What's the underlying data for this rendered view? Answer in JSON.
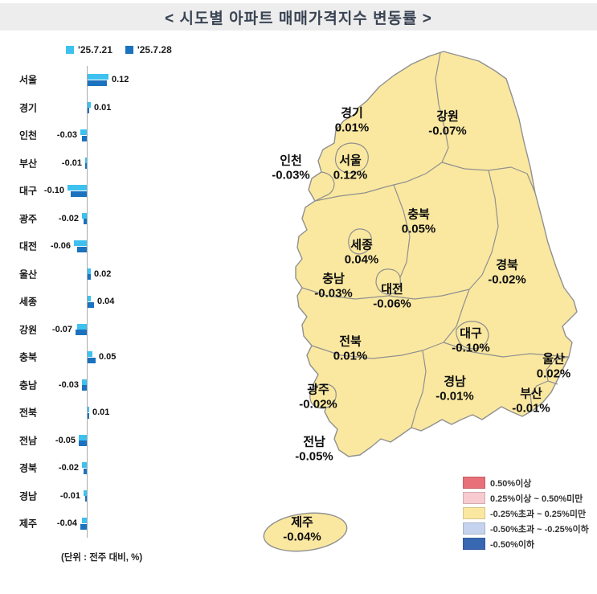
{
  "header": {
    "title": "< 시도별 아파트 매매가격지수 변동률 >"
  },
  "chart_data": {
    "type": "bar",
    "orientation": "horizontal",
    "title": "시도별 아파트 매매가격지수 변동률",
    "categories": [
      "서울",
      "경기",
      "인천",
      "부산",
      "대구",
      "광주",
      "대전",
      "울산",
      "세종",
      "강원",
      "충북",
      "충남",
      "전북",
      "전남",
      "경북",
      "경남",
      "제주"
    ],
    "series": [
      {
        "name": "'25.7.21",
        "color": "#3ec1ef",
        "estimated": true,
        "values": [
          0.13,
          0.02,
          -0.04,
          -0.01,
          -0.12,
          -0.03,
          -0.08,
          0.02,
          0.02,
          -0.06,
          0.03,
          -0.03,
          0.01,
          -0.05,
          -0.03,
          -0.02,
          -0.03
        ]
      },
      {
        "name": "'25.7.28",
        "color": "#1b72be",
        "estimated": false,
        "values": [
          0.12,
          0.01,
          -0.03,
          -0.01,
          -0.1,
          -0.02,
          -0.06,
          0.02,
          0.04,
          -0.07,
          0.05,
          -0.03,
          0.01,
          -0.05,
          -0.02,
          -0.01,
          -0.04
        ]
      }
    ],
    "value_labels": [
      "0.12",
      "0.01",
      "-0.03",
      "-0.01",
      "-0.10",
      "-0.02",
      "-0.06",
      "0.02",
      "0.04",
      "-0.07",
      "0.05",
      "-0.03",
      "0.01",
      "-0.05",
      "-0.02",
      "-0.01",
      "-0.04"
    ],
    "xlim": [
      -0.15,
      0.2
    ],
    "grid": false,
    "legend_position": "top-left",
    "unit_note": "(단위 : 전주 대비, %)"
  },
  "map": {
    "fill_color": "#fae8a0",
    "border_color": "#909090",
    "labels": [
      {
        "name": "경기",
        "value": "0.01%"
      },
      {
        "name": "강원",
        "value": "-0.07%"
      },
      {
        "name": "인천",
        "value": "-0.03%"
      },
      {
        "name": "서울",
        "value": "0.12%"
      },
      {
        "name": "충북",
        "value": "0.05%"
      },
      {
        "name": "세종",
        "value": "0.04%"
      },
      {
        "name": "충남",
        "value": "-0.03%"
      },
      {
        "name": "대전",
        "value": "-0.06%"
      },
      {
        "name": "경북",
        "value": "-0.02%"
      },
      {
        "name": "전북",
        "value": "0.01%"
      },
      {
        "name": "대구",
        "value": "-0.10%"
      },
      {
        "name": "울산",
        "value": "0.02%"
      },
      {
        "name": "광주",
        "value": "-0.02%"
      },
      {
        "name": "경남",
        "value": "-0.01%"
      },
      {
        "name": "부산",
        "value": "-0.01%"
      },
      {
        "name": "전남",
        "value": "-0.05%"
      },
      {
        "name": "제주",
        "value": "-0.04%"
      }
    ],
    "legend": [
      {
        "label": "0.50%이상",
        "color": "#e87078"
      },
      {
        "label": "0.25%이상 ~ 0.50%미만",
        "color": "#f7cbd0"
      },
      {
        "label": "-0.25%초과 ~ 0.25%미만",
        "color": "#fae8a0"
      },
      {
        "label": "-0.50%초과 ~ -0.25%이하",
        "color": "#c5d3ee"
      },
      {
        "label": "-0.50%이하",
        "color": "#3968b3"
      }
    ]
  }
}
